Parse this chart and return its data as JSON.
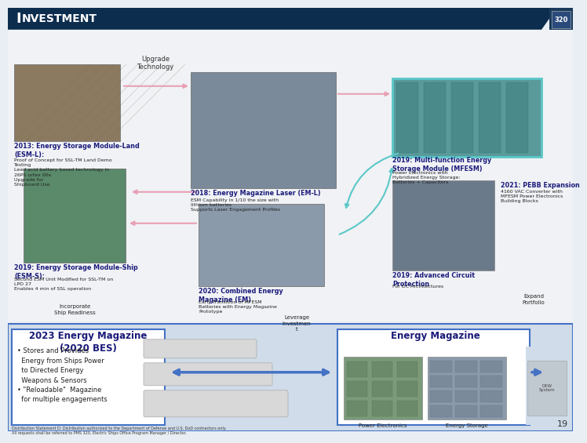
{
  "title": "Investment",
  "title_bg_color": "#0d2d4e",
  "title_text_color": "#ffffff",
  "slide_bg": "#e8eef4",
  "bottom_bg": "#d0dcea",
  "arrow_color_pink": "#e8a0b4",
  "arrow_color_teal": "#5bc8c8",
  "arrow_color_blue": "#4472c4",
  "upgrade_label": "Upgrade\nTechnology",
  "footer": "Distribution Statement D: Distribution authorized to the Department of Defense and U.S. DoD contractors only.\nAll requests shall be referred to PMS 320, Electric Ships Office Program Manager / Director.",
  "page_num": "19"
}
